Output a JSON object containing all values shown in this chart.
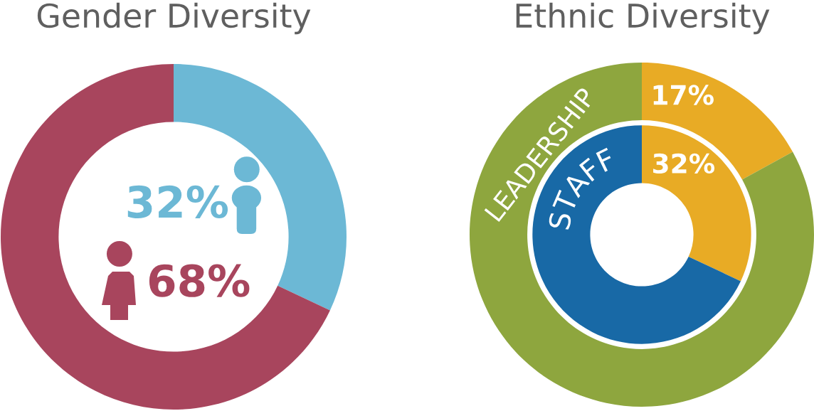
{
  "chart_data": [
    {
      "type": "donut",
      "title": "Gender Diversity",
      "categories": [
        null,
        null
      ],
      "values": [
        32,
        68
      ],
      "colors": [
        "#6cb8d5",
        "#a8455d"
      ],
      "value_labels": [
        "32%",
        "68%"
      ]
    },
    {
      "type": "donut",
      "title": "Ethnic Diversity",
      "categories": [
        null,
        null
      ],
      "series": [
        {
          "name": "LEADERSHIP",
          "values": [
            17,
            83
          ],
          "colors": [
            "#e8ab25",
            "#8ea63e"
          ],
          "value_labels": [
            "17%",
            null
          ]
        },
        {
          "name": "STAFF",
          "values": [
            32,
            68
          ],
          "colors": [
            "#e8ab25",
            "#1869a6"
          ],
          "value_labels": [
            "32%",
            null
          ]
        }
      ]
    }
  ]
}
